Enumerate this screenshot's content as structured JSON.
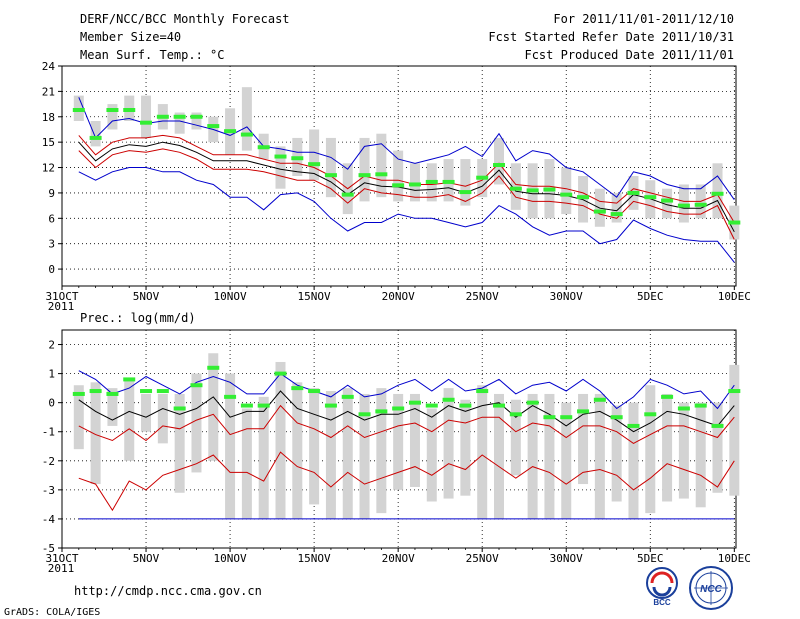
{
  "header": {
    "left_line1": "DERF/NCC/BCC Monthly Forecast",
    "left_line2": "Member Size=40",
    "left_line3": "Mean Surf. Temp.: °C",
    "right_line1": "For 2011/11/01-2011/12/10",
    "right_line2": "Fcst Started Refer Date 2011/10/31",
    "right_line3": "Fcst Produced Date 2011/11/01"
  },
  "footer": {
    "url": "http://cmdp.ncc.cma.gov.cn",
    "credit": "GrADS: COLA/IGES",
    "logo_bcc": "BCC",
    "logo_ncc": "NCC"
  },
  "colors": {
    "box": "#d3d3d3",
    "obs": "#33ee33",
    "mean": "#000000",
    "spread": "#cc0000",
    "range": "#0000cc",
    "grid": "#000000"
  },
  "chart_data": [
    {
      "id": "temperature",
      "type": "line",
      "title": "Mean Surf. Temp.: °C",
      "x_start_label": "31OCT",
      "x_year_label": "2011",
      "x_tick_labels": [
        "31OCT",
        "5NOV",
        "10NOV",
        "15NOV",
        "20NOV",
        "25NOV",
        "30NOV",
        "5DEC",
        "10DEC"
      ],
      "y_tick_labels": [
        "0",
        "3",
        "6",
        "9",
        "12",
        "15",
        "18",
        "21",
        "24"
      ],
      "y_ticks": [
        0,
        3,
        6,
        9,
        12,
        15,
        18,
        21,
        24
      ],
      "x": [
        1,
        2,
        3,
        4,
        5,
        6,
        7,
        8,
        9,
        10,
        11,
        12,
        13,
        14,
        15,
        16,
        17,
        18,
        19,
        20,
        21,
        22,
        23,
        24,
        25,
        26,
        27,
        28,
        29,
        30,
        31,
        32,
        33,
        34,
        35,
        36,
        37,
        38,
        39,
        40
      ],
      "xlim": [
        0,
        40.1
      ],
      "ylim": [
        -2,
        24
      ],
      "series": [
        {
          "name": "ensemble max",
          "color": "range",
          "values": [
            20.3,
            15.5,
            17.5,
            17.8,
            17.2,
            17.5,
            17.5,
            17.0,
            16.5,
            15.8,
            16.8,
            14.5,
            14.2,
            13.8,
            13.8,
            13.2,
            11.8,
            14.5,
            14.8,
            13.0,
            12.5,
            13.0,
            13.5,
            14.5,
            13.3,
            16.0,
            12.8,
            14.0,
            13.6,
            12.0,
            11.5,
            10.0,
            8.5,
            11.5,
            11.0,
            10.0,
            9.5,
            9.5,
            11.0,
            8.2
          ]
        },
        {
          "name": "mean + spread",
          "color": "spread",
          "values": [
            15.8,
            13.5,
            15.0,
            15.5,
            15.5,
            15.8,
            15.5,
            14.5,
            13.5,
            13.5,
            13.5,
            13.0,
            12.5,
            12.5,
            12.0,
            11.0,
            9.5,
            11.0,
            10.5,
            10.5,
            10.0,
            10.0,
            10.2,
            9.8,
            10.5,
            12.5,
            10.0,
            9.8,
            9.8,
            9.5,
            9.0,
            8.0,
            7.8,
            9.5,
            9.0,
            8.5,
            8.0,
            8.0,
            8.8,
            5.5
          ]
        },
        {
          "name": "ensemble mean",
          "color": "mean",
          "values": [
            15.0,
            12.8,
            14.2,
            14.7,
            14.5,
            15.0,
            14.6,
            13.8,
            12.8,
            12.8,
            12.8,
            12.3,
            11.8,
            11.5,
            11.3,
            10.3,
            8.8,
            10.2,
            9.8,
            9.7,
            9.3,
            9.4,
            9.6,
            9.0,
            9.8,
            11.7,
            9.2,
            8.9,
            8.9,
            8.7,
            8.2,
            7.2,
            6.9,
            8.8,
            8.3,
            7.6,
            7.2,
            7.2,
            8.1,
            4.4
          ]
        },
        {
          "name": "mean - spread",
          "color": "spread",
          "values": [
            14.0,
            12.0,
            13.5,
            14.0,
            13.8,
            14.2,
            13.8,
            13.0,
            11.8,
            11.8,
            11.8,
            11.5,
            11.0,
            10.5,
            10.5,
            9.5,
            7.8,
            9.5,
            9.0,
            8.8,
            8.5,
            8.5,
            8.8,
            8.0,
            9.0,
            11.0,
            8.5,
            8.0,
            8.0,
            7.8,
            7.5,
            6.5,
            6.0,
            8.0,
            7.5,
            6.8,
            6.5,
            6.5,
            7.5,
            3.5
          ]
        },
        {
          "name": "ensemble min",
          "color": "range",
          "values": [
            11.5,
            10.5,
            11.5,
            12.0,
            12.0,
            11.5,
            11.5,
            10.5,
            10.0,
            8.5,
            8.5,
            7.0,
            8.8,
            9.0,
            8.0,
            6.0,
            4.5,
            5.5,
            5.5,
            6.5,
            6.0,
            6.0,
            5.5,
            5.0,
            5.5,
            7.5,
            6.5,
            5.0,
            4.0,
            4.5,
            4.5,
            3.0,
            3.5,
            5.8,
            4.8,
            4.0,
            3.5,
            3.3,
            3.3,
            0.8
          ]
        }
      ],
      "boxes_low": [
        17.5,
        14.5,
        16.5,
        17.5,
        15.5,
        16.5,
        16.0,
        16.5,
        15.0,
        13.5,
        14.0,
        13.0,
        9.5,
        11.0,
        10.5,
        8.5,
        6.5,
        8.0,
        8.5,
        8.0,
        8.0,
        8.0,
        8.0,
        7.5,
        8.5,
        10.0,
        7.0,
        6.0,
        6.0,
        6.5,
        5.5,
        5.0,
        5.5,
        7.0,
        6.0,
        6.0,
        5.5,
        6.0,
        6.0,
        3.5
      ],
      "boxes_high": [
        20.5,
        17.5,
        19.5,
        20.5,
        20.5,
        19.5,
        18.5,
        18.5,
        18.0,
        19.0,
        21.5,
        16.0,
        14.5,
        15.5,
        16.5,
        15.5,
        12.5,
        15.5,
        16.0,
        14.0,
        12.5,
        12.5,
        13.0,
        13.0,
        13.0,
        15.5,
        12.5,
        12.5,
        13.0,
        12.0,
        11.0,
        9.5,
        9.0,
        11.0,
        10.5,
        9.5,
        10.0,
        10.0,
        12.5,
        7.5
      ],
      "obs": [
        18.8,
        15.5,
        18.8,
        18.8,
        17.3,
        18.0,
        18.0,
        18.0,
        16.9,
        16.3,
        15.9,
        14.4,
        13.3,
        13.1,
        12.4,
        11.1,
        8.8,
        11.1,
        11.2,
        9.9,
        10.0,
        10.3,
        10.3,
        9.1,
        10.8,
        12.3,
        9.5,
        9.3,
        9.4,
        8.8,
        8.5,
        6.8,
        6.5,
        9.0,
        8.5,
        8.1,
        7.5,
        7.6,
        8.9,
        5.5
      ]
    },
    {
      "id": "precipitation",
      "type": "line",
      "title": "Prec.: log(mm/d)",
      "x_start_label": "31OCT",
      "x_year_label": "2011",
      "x_tick_labels": [
        "31OCT",
        "5NOV",
        "10NOV",
        "15NOV",
        "20NOV",
        "25NOV",
        "30NOV",
        "5DEC",
        "10DEC"
      ],
      "y_tick_labels": [
        "-5",
        "-4",
        "-3",
        "-2",
        "-1",
        "0",
        "1",
        "2"
      ],
      "y_ticks": [
        -5,
        -4,
        -3,
        -2,
        -1,
        0,
        1,
        2
      ],
      "x": [
        1,
        2,
        3,
        4,
        5,
        6,
        7,
        8,
        9,
        10,
        11,
        12,
        13,
        14,
        15,
        16,
        17,
        18,
        19,
        20,
        21,
        22,
        23,
        24,
        25,
        26,
        27,
        28,
        29,
        30,
        31,
        32,
        33,
        34,
        35,
        36,
        37,
        38,
        39,
        40
      ],
      "xlim": [
        0,
        40.1
      ],
      "ylim": [
        -5,
        2.5
      ],
      "series": [
        {
          "name": "ensemble max",
          "color": "range",
          "values": [
            1.1,
            0.8,
            0.3,
            0.5,
            0.9,
            0.6,
            0.3,
            0.7,
            0.9,
            0.7,
            0.3,
            0.3,
            1.0,
            0.6,
            0.4,
            0.2,
            0.6,
            0.2,
            0.3,
            0.6,
            0.8,
            0.4,
            0.8,
            0.4,
            0.5,
            0.8,
            0.3,
            0.6,
            0.7,
            0.4,
            0.8,
            0.4,
            -0.2,
            0.2,
            0.8,
            0.6,
            0.3,
            0.4,
            -0.2,
            0.6
          ]
        },
        {
          "name": "ensemble mean",
          "color": "mean",
          "values": [
            0.1,
            -0.3,
            -0.6,
            -0.3,
            -0.5,
            -0.2,
            -0.4,
            -0.2,
            0.2,
            -0.5,
            -0.3,
            -0.3,
            0.4,
            -0.2,
            -0.4,
            -0.6,
            -0.3,
            -0.6,
            -0.4,
            -0.4,
            -0.2,
            -0.5,
            -0.1,
            -0.3,
            -0.1,
            0.0,
            -0.5,
            -0.1,
            -0.4,
            -0.8,
            -0.4,
            -0.3,
            -0.6,
            -1.0,
            -0.7,
            -0.3,
            -0.4,
            -0.6,
            -0.8,
            -0.1
          ]
        },
        {
          "name": "mean + spread",
          "color": "spread",
          "values": [
            -0.8,
            -1.1,
            -1.3,
            -0.9,
            -1.3,
            -0.8,
            -0.9,
            -0.6,
            -0.4,
            -1.1,
            -0.9,
            -0.9,
            -0.1,
            -0.7,
            -0.9,
            -1.2,
            -0.8,
            -1.2,
            -1.0,
            -0.8,
            -0.7,
            -1.0,
            -0.6,
            -0.7,
            -0.5,
            -0.5,
            -1.0,
            -0.7,
            -0.8,
            -1.2,
            -0.8,
            -0.8,
            -1.0,
            -1.4,
            -1.1,
            -0.8,
            -0.8,
            -1.0,
            -1.2,
            -0.5
          ]
        },
        {
          "name": "mean - spread",
          "color": "spread",
          "values": [
            -2.6,
            -2.8,
            -3.7,
            -2.7,
            -3.0,
            -2.5,
            -2.3,
            -2.1,
            -1.8,
            -2.4,
            -2.4,
            -2.7,
            -1.7,
            -2.2,
            -2.4,
            -2.9,
            -2.4,
            -2.8,
            -2.6,
            -2.4,
            -2.2,
            -2.5,
            -2.1,
            -2.3,
            -1.8,
            -2.2,
            -2.6,
            -2.2,
            -2.4,
            -2.8,
            -2.4,
            -2.3,
            -2.5,
            -3.0,
            -2.6,
            -2.1,
            -2.3,
            -2.5,
            -2.9,
            -2.0
          ]
        },
        {
          "name": "ensemble min",
          "color": "range",
          "values": [
            -4.0,
            -4.0,
            -4.0,
            -4.0,
            -4.0,
            -4.0,
            -4.0,
            -4.0,
            -4.0,
            -4.0,
            -4.0,
            -4.0,
            -4.0,
            -4.0,
            -4.0,
            -4.0,
            -4.0,
            -4.0,
            -4.0,
            -4.0,
            -4.0,
            -4.0,
            -4.0,
            -4.0,
            -4.0,
            -4.0,
            -4.0,
            -4.0,
            -4.0,
            -4.0,
            -4.0,
            -4.0,
            -4.0,
            -4.0,
            -4.0,
            -4.0,
            -4.0,
            -4.0,
            -4.0,
            -4.0
          ]
        }
      ],
      "boxes_low": [
        -1.6,
        -2.8,
        -0.8,
        -2.0,
        -1.0,
        -1.4,
        -3.1,
        -2.4,
        -2.0,
        -4.0,
        -4.0,
        -4.0,
        -4.0,
        -4.0,
        -3.5,
        -4.0,
        -4.0,
        -4.0,
        -3.8,
        -3.0,
        -2.9,
        -3.4,
        -3.3,
        -3.2,
        -4.0,
        -4.0,
        -2.5,
        -4.0,
        -4.0,
        -4.0,
        -2.8,
        -4.0,
        -3.4,
        -4.0,
        -3.8,
        -3.4,
        -3.3,
        -3.6,
        -3.1,
        -3.2
      ],
      "boxes_high": [
        0.6,
        0.7,
        0.5,
        0.8,
        0.3,
        0.3,
        0.3,
        1.0,
        1.7,
        1.0,
        -0.2,
        0.2,
        1.4,
        0.7,
        0.5,
        0.4,
        0.5,
        0.3,
        0.5,
        0.3,
        0.3,
        -0.2,
        0.5,
        0.1,
        0.6,
        0.3,
        0.1,
        0.3,
        0.3,
        0.0,
        0.3,
        0.3,
        -0.1,
        0.0,
        0.6,
        0.3,
        0.0,
        0.0,
        0.0,
        1.3
      ],
      "obs": [
        0.3,
        0.4,
        0.3,
        0.8,
        0.4,
        0.4,
        -0.2,
        0.6,
        1.2,
        0.2,
        -0.1,
        -0.1,
        1.0,
        0.5,
        0.4,
        -0.1,
        0.2,
        -0.4,
        -0.3,
        -0.2,
        0.0,
        -0.1,
        0.1,
        -0.1,
        0.4,
        -0.1,
        -0.4,
        0.0,
        -0.5,
        -0.5,
        -0.3,
        0.1,
        -0.5,
        -0.8,
        -0.4,
        0.2,
        -0.2,
        -0.1,
        -0.8,
        0.4
      ]
    }
  ]
}
